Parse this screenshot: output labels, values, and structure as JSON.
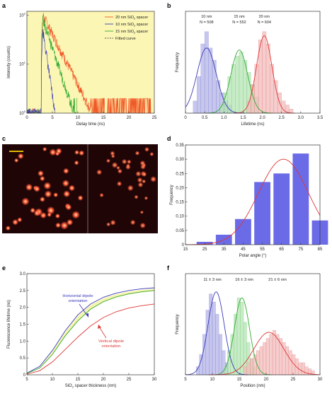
{
  "chart_data": [
    {
      "panel": "a",
      "type": "line",
      "xlabel": "Delay time (ns)",
      "ylabel": "Intensity (counts)",
      "xlim": [
        0,
        25
      ],
      "ylim": [
        1,
        120
      ],
      "yscale": "log",
      "xticks": [
        0,
        5,
        10,
        15,
        20,
        25
      ],
      "yticks": [
        1,
        10,
        100
      ],
      "ytick_labels": [
        "10",
        "10",
        "10"
      ],
      "ytick_sups": [
        "0",
        "1",
        "2"
      ],
      "background": "#fbf6b4",
      "legend_position": "top-right",
      "legend": [
        {
          "pre": "20 nm SiO",
          "sub": "2",
          "post": " spacer",
          "color": "#f05a28",
          "dash": false
        },
        {
          "pre": "10 nm SiO",
          "sub": "2",
          "post": " spacer",
          "color": "#3a3ab8",
          "dash": false
        },
        {
          "pre": "15 nm SiO",
          "sub": "2",
          "post": " spacer",
          "color": "#33aa33",
          "dash": false
        },
        {
          "pre": "Fitted curve",
          "sub": "",
          "post": "",
          "color": "#555555",
          "dash": true
        }
      ],
      "series": [
        {
          "name": "20 nm SiO2 spacer",
          "color": "#f05a28",
          "t0": 2.8,
          "peak": 100,
          "tau": 2.1,
          "end": 24.5
        },
        {
          "name": "15 nm SiO2 spacer",
          "color": "#33aa33",
          "t0": 2.8,
          "peak": 80,
          "tau": 1.4,
          "end": 10
        },
        {
          "name": "10 nm SiO2 spacer",
          "color": "#3a3ab8",
          "t0": 2.8,
          "peak": 50,
          "tau": 0.6,
          "end": 5.5
        }
      ]
    },
    {
      "panel": "b",
      "type": "bar",
      "xlabel": "Lifetime (ns)",
      "ylabel": "Frequency",
      "xlim": [
        0,
        3.5
      ],
      "ylim": [
        0,
        0.25
      ],
      "xticks": [
        0,
        0.5,
        1.0,
        1.5,
        2.0,
        2.5,
        3.0,
        3.5
      ],
      "xtick_labels": [
        "0",
        "0.5",
        "1.0",
        "1.5",
        "2.0",
        "2.5",
        "3.0",
        "3.5"
      ],
      "groups": [
        {
          "label": "10 nm",
          "n_text": "N = 508",
          "color": "#3a3ab8",
          "fill": "#b4b4e8",
          "bin_start": 0.2,
          "bin_width": 0.1,
          "values": [
            0.03,
            0.09,
            0.17,
            0.2,
            0.16,
            0.13,
            0.08,
            0.05,
            0.03,
            0.02
          ],
          "fit_mu": 0.55,
          "fit_sigma": 0.25,
          "fit_peak": 0.16
        },
        {
          "label": "15 nm",
          "n_text": "N = 552",
          "color": "#33aa33",
          "fill": "#b4e6b4",
          "bin_start": 0.9,
          "bin_width": 0.1,
          "values": [
            0.02,
            0.05,
            0.09,
            0.12,
            0.14,
            0.15,
            0.13,
            0.1,
            0.07,
            0.04
          ],
          "fit_mu": 1.4,
          "fit_sigma": 0.22,
          "fit_peak": 0.155
        },
        {
          "label": "20 nm",
          "n_text": "N = 604",
          "color": "#e03535",
          "fill": "#f2bcbc",
          "bin_start": 1.6,
          "bin_width": 0.1,
          "values": [
            0.03,
            0.07,
            0.12,
            0.18,
            0.2,
            0.17,
            0.12,
            0.08,
            0.05,
            0.03,
            0.02,
            0.01
          ],
          "fit_mu": 2.05,
          "fit_sigma": 0.2,
          "fit_peak": 0.19
        }
      ]
    },
    {
      "panel": "d",
      "type": "bar",
      "xlabel": "Polar angle (°)",
      "ylabel": "Frequency",
      "ylim": [
        0,
        0.35
      ],
      "xticks": [
        15,
        25,
        35,
        45,
        55,
        65,
        75,
        85
      ],
      "yticks": [
        0,
        0.05,
        0.1,
        0.15,
        0.2,
        0.25,
        0.3,
        0.35
      ],
      "ytick_labels": [
        "0",
        "0.05",
        "0.10",
        "0.15",
        "0.20",
        "0.25",
        "0.30",
        "0.35"
      ],
      "categories": [
        25,
        35,
        45,
        55,
        65,
        75,
        85
      ],
      "values": [
        0.01,
        0.035,
        0.09,
        0.22,
        0.25,
        0.32,
        0.085
      ],
      "bar_color": "#6b6be8",
      "fit_color": "#e03535",
      "fit_mu": 66,
      "fit_sigma": 13,
      "fit_peak": 0.3
    },
    {
      "panel": "e",
      "type": "line",
      "xlabel_pre": "SiO",
      "xlabel_sub": "2",
      "xlabel_post": " spacer thickness (nm)",
      "ylabel": "Fluorescence lifetime (ns)",
      "xlim": [
        5,
        30
      ],
      "ylim": [
        0,
        3
      ],
      "xticks": [
        5,
        10,
        15,
        20,
        25,
        30
      ],
      "yticks": [
        0,
        0.5,
        1.0,
        1.5,
        2.0,
        2.5,
        3.0
      ],
      "ytick_labels": [
        "0",
        "0.5",
        "1.0",
        "1.5",
        "2.0",
        "2.5",
        "3.0"
      ],
      "annotations": [
        {
          "text": [
            "Horizontal dipole",
            "orientation"
          ],
          "color": "#3a3ab8"
        },
        {
          "text": [
            "Vertical dipole",
            "orientation"
          ],
          "color": "#e03535"
        }
      ],
      "series": [
        {
          "name": "Horizontal dipole orientation",
          "color": "#3a3ab8",
          "x": [
            5,
            7.5,
            10,
            12.5,
            15,
            17.5,
            20,
            22.5,
            25,
            27.5,
            30
          ],
          "y": [
            0.05,
            0.25,
            0.72,
            1.3,
            1.78,
            2.1,
            2.3,
            2.42,
            2.5,
            2.55,
            2.58
          ]
        },
        {
          "name": "",
          "color": "#33aa33",
          "x": [
            5,
            7.5,
            10,
            12.5,
            15,
            17.5,
            20,
            22.5,
            25,
            27.5,
            30
          ],
          "y": [
            0.04,
            0.2,
            0.6,
            1.15,
            1.6,
            1.95,
            2.17,
            2.31,
            2.4,
            2.46,
            2.5
          ]
        },
        {
          "name": "Vertical dipole orientation",
          "color": "#e03535",
          "x": [
            5,
            7.5,
            10,
            12.5,
            15,
            17.5,
            20,
            22.5,
            25,
            27.5,
            30
          ],
          "y": [
            0.02,
            0.12,
            0.38,
            0.75,
            1.12,
            1.45,
            1.7,
            1.87,
            1.98,
            2.05,
            2.1
          ]
        }
      ]
    },
    {
      "panel": "f",
      "type": "bar",
      "xlabel": "Position (nm)",
      "ylabel": "Frequency",
      "xlim": [
        5,
        30
      ],
      "ylim": [
        0,
        0.25
      ],
      "xticks": [
        5,
        10,
        15,
        20,
        25,
        30
      ],
      "groups": [
        {
          "label": "11 ± 3 nm",
          "color": "#3a3ab8",
          "fill": "#b4b4e8",
          "bin_start": 7,
          "bin_width": 0.6,
          "values": [
            0.02,
            0.05,
            0.1,
            0.16,
            0.2,
            0.18,
            0.15,
            0.1,
            0.06,
            0.03
          ],
          "fit_mu": 10.7,
          "fit_sigma": 1.5,
          "fit_peak": 0.205
        },
        {
          "label": "16 ± 3 nm",
          "color": "#33aa33",
          "fill": "#b4e6b4",
          "bin_start": 12.2,
          "bin_width": 0.6,
          "values": [
            0.02,
            0.06,
            0.1,
            0.15,
            0.19,
            0.18,
            0.13,
            0.08,
            0.04,
            0.02
          ],
          "fit_mu": 15.5,
          "fit_sigma": 1.4,
          "fit_peak": 0.19
        },
        {
          "label": "21 ± 6 nm",
          "color": "#e03535",
          "fill": "#f2bcbc",
          "bin_start": 15.8,
          "bin_width": 0.6,
          "values": [
            0.02,
            0.03,
            0.04,
            0.05,
            0.06,
            0.07,
            0.08,
            0.09,
            0.1,
            0.11,
            0.1,
            0.09,
            0.08,
            0.07,
            0.06,
            0.05,
            0.04,
            0.03,
            0.03,
            0.02,
            0.015,
            0.01
          ],
          "fit_mu": 20.5,
          "fit_sigma": 2.8,
          "fit_peak": 0.105
        }
      ]
    }
  ],
  "panel_labels": [
    "a",
    "b",
    "c",
    "d",
    "e",
    "f"
  ],
  "micrograph": {
    "background": "#1f0506",
    "spot_color": "#ff5a3c",
    "scale_bar_color": "#ffd400"
  }
}
